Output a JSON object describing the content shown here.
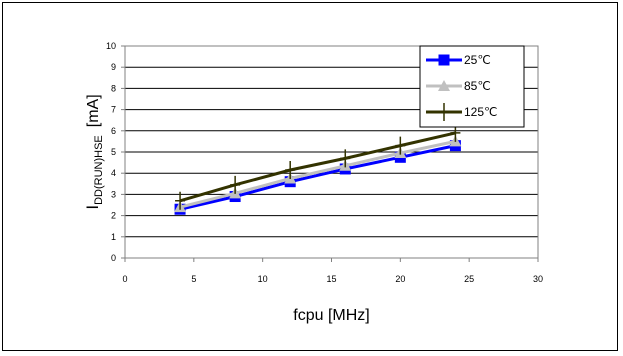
{
  "chart_data": {
    "type": "line",
    "xlabel": "fcpu [MHz]",
    "ylabel": "IDD(RUN)HSE [mA]",
    "ylabel_parts": {
      "main": "I",
      "sub": "DD(RUN)HSE",
      "unit": "[mA]"
    },
    "xlim": [
      0,
      30
    ],
    "ylim": [
      0,
      10
    ],
    "xticks": [
      0,
      5,
      10,
      15,
      20,
      25,
      30
    ],
    "yticks": [
      0,
      1,
      2,
      3,
      4,
      5,
      6,
      7,
      8,
      9,
      10
    ],
    "grid": "horizontal",
    "legend_position": "top-right",
    "series": [
      {
        "name": "25℃",
        "color": "#0000ff",
        "marker": "square",
        "x": [
          4,
          8,
          12,
          16,
          20,
          24
        ],
        "y": [
          2.3,
          2.9,
          3.6,
          4.2,
          4.75,
          5.3
        ]
      },
      {
        "name": "85℃",
        "color": "#c0c0c0",
        "marker": "triangle",
        "x": [
          4,
          8,
          12,
          16,
          20,
          24
        ],
        "y": [
          2.4,
          3.05,
          3.75,
          4.35,
          4.95,
          5.5
        ]
      },
      {
        "name": "125℃",
        "color": "#333300",
        "marker": "plus",
        "x": [
          4,
          8,
          12,
          16,
          20,
          24
        ],
        "y": [
          2.7,
          3.45,
          4.15,
          4.7,
          5.3,
          5.9
        ]
      }
    ]
  }
}
